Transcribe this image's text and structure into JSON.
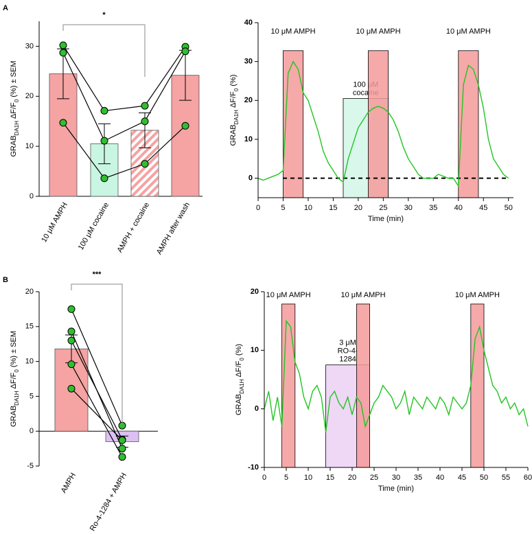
{
  "chart_data": [
    {
      "type": "bar",
      "panel": "A",
      "annotation": "*",
      "ylabel": [
        "GRAB",
        "DA1H",
        " ΔF/F",
        "0",
        " (%) ± SEM"
      ],
      "categories": [
        "10 μM AMPH",
        "100 μM cocaine",
        "AMPH + cocaine",
        "AMPH after wash"
      ],
      "values": [
        24.5,
        10.5,
        13.2,
        24.2
      ],
      "errors": [
        5,
        4,
        3.5,
        5
      ],
      "colors": [
        "#f5a3a3",
        "#c9f5e3",
        "#f5a3a3",
        "#f5a3a3"
      ],
      "hatched": [
        false,
        false,
        true,
        false
      ],
      "subjects": [
        [
          30.2,
          17.1,
          18.1,
          29.9
        ],
        [
          28.7,
          11.1,
          15.0,
          29.0
        ],
        [
          14.7,
          3.6,
          6.5,
          14.1
        ]
      ],
      "point_color": "#2fbf2f",
      "ylim": [
        0,
        35
      ],
      "yticks": [
        0,
        10,
        20,
        30
      ]
    },
    {
      "type": "line",
      "xlabel": "Time (min)",
      "ylabel": [
        "GRAB",
        "DA1H",
        " ΔF/F",
        "0",
        " (%)"
      ],
      "color": "#22c422",
      "x": [
        0,
        1,
        2,
        3,
        4,
        5,
        6,
        7,
        8,
        9,
        10,
        11,
        12,
        13,
        14,
        15,
        16,
        17,
        18,
        19,
        20,
        21,
        22,
        23,
        24,
        25,
        26,
        27,
        28,
        29,
        30,
        31,
        32,
        33,
        34,
        35,
        36,
        37,
        38,
        39,
        40,
        41,
        42,
        43,
        44,
        45,
        46,
        47,
        48,
        49,
        50
      ],
      "values": [
        0,
        -0.5,
        0,
        0.5,
        1,
        2,
        27,
        30,
        28,
        22,
        20,
        16,
        12,
        7,
        4,
        2,
        0,
        -1,
        5,
        9,
        13,
        15,
        17,
        18,
        18.5,
        18,
        17,
        15,
        12,
        8,
        5,
        3,
        1,
        0,
        0,
        0,
        1,
        0.5,
        0,
        0,
        -2,
        24,
        29,
        28,
        24,
        18,
        10,
        5,
        3,
        1,
        0
      ],
      "regions": [
        {
          "label": [
            "100 μM",
            "cocaine"
          ],
          "start": 17,
          "end": 26,
          "top": 20.5,
          "color": "#d2f7e8"
        },
        {
          "label": [
            "10 μM AMPH"
          ],
          "start": 5,
          "end": 9,
          "top": 32.8,
          "color": "#f59a9a"
        },
        {
          "label": [
            "10 μM AMPH"
          ],
          "start": 22,
          "end": 26,
          "top": 32.8,
          "color": "#f59a9a"
        },
        {
          "label": [
            "10 μM AMPH"
          ],
          "start": 40,
          "end": 44,
          "top": 32.8,
          "color": "#f59a9a"
        }
      ],
      "xlim": [
        0,
        51
      ],
      "xticks": [
        0,
        5,
        10,
        15,
        20,
        25,
        30,
        35,
        40,
        45,
        50
      ],
      "ylim": [
        -5,
        40
      ],
      "yticks": [
        0,
        10,
        20,
        30,
        40
      ]
    },
    {
      "type": "bar",
      "panel": "B",
      "annotation": "***",
      "ylabel": [
        "GRAB",
        "DA1H",
        " ΔF/F",
        "0",
        " (%) ± SEM"
      ],
      "categories": [
        "AMPH",
        "Ro-4-1284 + AMPH"
      ],
      "values": [
        11.8,
        -1.5
      ],
      "errors": [
        2,
        0.8
      ],
      "colors": [
        "#f5a3a3",
        "#dcc0f2"
      ],
      "hatched": [
        false,
        false
      ],
      "subjects": [
        [
          17.5,
          0.8
        ],
        [
          14.3,
          -2.5
        ],
        [
          13.0,
          -1.2
        ],
        [
          9.6,
          -3.7
        ],
        [
          6.1,
          -1.3
        ]
      ],
      "point_color": "#2fbf2f",
      "ylim": [
        -5,
        20
      ],
      "yticks": [
        -5,
        0,
        5,
        10,
        15,
        20
      ]
    },
    {
      "type": "line",
      "xlabel": "Time (min)",
      "ylabel": [
        "GRAB",
        "DA1H",
        " ΔF/F",
        "0",
        " (%)"
      ],
      "color": "#22c422",
      "x": [
        0,
        1,
        2,
        3,
        4,
        5,
        6,
        7,
        8,
        9,
        10,
        11,
        12,
        13,
        14,
        15,
        16,
        17,
        18,
        19,
        20,
        21,
        22,
        23,
        24,
        25,
        26,
        27,
        28,
        29,
        30,
        31,
        32,
        33,
        34,
        35,
        36,
        37,
        38,
        39,
        40,
        41,
        42,
        43,
        44,
        45,
        46,
        47,
        48,
        49,
        50,
        51,
        52,
        53,
        54,
        55,
        56,
        57,
        58,
        59,
        60
      ],
      "values": [
        0,
        3,
        -2,
        2,
        -3,
        15,
        14,
        8,
        6,
        2,
        0,
        3,
        4,
        2,
        -4,
        2,
        3,
        1,
        0,
        2,
        -1,
        2,
        1,
        -3,
        -1,
        1,
        2,
        4,
        3,
        2,
        0,
        1,
        3,
        -1,
        2,
        1,
        0,
        2,
        1,
        0,
        2,
        1,
        -1,
        2,
        1,
        0,
        1,
        4,
        12,
        14,
        10,
        7,
        4,
        3,
        1,
        2,
        0,
        1,
        -1,
        0,
        -3
      ],
      "regions": [
        {
          "label": [
            "3 μM",
            "RO-4-",
            "1284"
          ],
          "start": 14,
          "end": 24,
          "top": 7.5,
          "color": "#ecd0f5"
        },
        {
          "label": [
            "10 μM AMPH"
          ],
          "start": 4,
          "end": 7,
          "top": 17.9,
          "color": "#f59a9a"
        },
        {
          "label": [
            "10 μM AMPH"
          ],
          "start": 21,
          "end": 24,
          "top": 17.9,
          "color": "#f59a9a"
        },
        {
          "label": [
            "10 μM AMPH"
          ],
          "start": 47,
          "end": 50,
          "top": 17.9,
          "color": "#f59a9a"
        }
      ],
      "xlim": [
        0,
        60
      ],
      "xticks": [
        0,
        5,
        10,
        15,
        20,
        25,
        30,
        35,
        40,
        45,
        50,
        55,
        60
      ],
      "ylim": [
        -10,
        20
      ],
      "yticks": [
        -10,
        0,
        10,
        20
      ]
    }
  ]
}
